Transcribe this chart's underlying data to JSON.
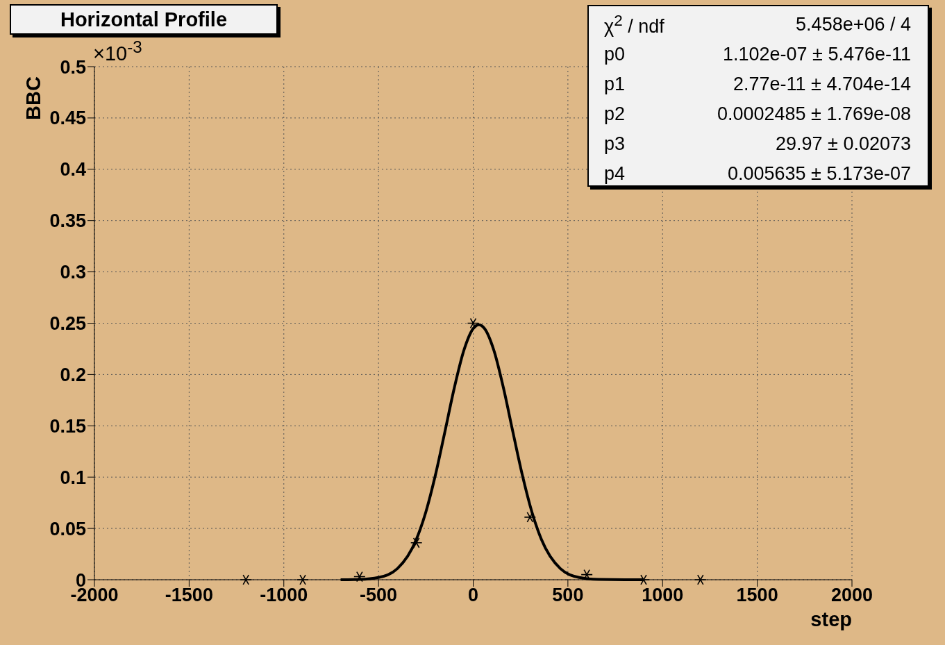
{
  "chart_data": {
    "type": "scatter",
    "title": "Horizontal Profile",
    "xlabel": "step",
    "ylabel": "BBC",
    "xlim": [
      -2000,
      2000
    ],
    "xticks": [
      -2000,
      -1500,
      -1000,
      -500,
      0,
      500,
      1000,
      1500,
      2000
    ],
    "ylim": [
      0,
      0.5
    ],
    "yticks": [
      0,
      0.05,
      0.1,
      0.15,
      0.2,
      0.25,
      0.3,
      0.35,
      0.4,
      0.45,
      0.5
    ],
    "grid": true,
    "legend": false,
    "series": [
      {
        "marker": "cross",
        "color": "#000000",
        "x": [
          -1200,
          -900,
          -600,
          -300,
          0,
          300,
          600,
          900,
          1200
        ],
        "values": [
          0,
          0,
          0.003,
          0.036,
          0.25,
          0.061,
          0.005,
          0,
          0
        ]
      },
      {
        "type": "line",
        "marker": "none",
        "color": "#000000",
        "x": [
          -700,
          -600,
          -500,
          -400,
          -300,
          -250,
          -200,
          -150,
          -100,
          -50,
          0,
          30,
          60,
          110,
          160,
          210,
          260,
          310,
          360,
          460,
          560,
          660,
          800,
          900
        ],
        "values": [
          0,
          0.0003,
          0.0022,
          0.0109,
          0.0394,
          0.066,
          0.1016,
          0.1437,
          0.1867,
          0.2231,
          0.2448,
          0.2485,
          0.2448,
          0.2231,
          0.1867,
          0.1437,
          0.1016,
          0.066,
          0.0394,
          0.0109,
          0.0022,
          0.0003,
          0,
          0
        ]
      }
    ],
    "annotations": [
      "×10$^{-3}$",
      "χ$^{2}$ / ndf",
      "5.458e+06 / 4",
      "p0",
      "1.102e-07 ± 5.476e-11",
      "p1",
      "2.77e-11 ± 4.704e-14",
      "p2",
      "0.0002485 ± 1.769e-08",
      "p3",
      "29.97 ± 0.02073",
      "p4",
      "0.005635 ± 5.173e-07"
    ]
  }
}
